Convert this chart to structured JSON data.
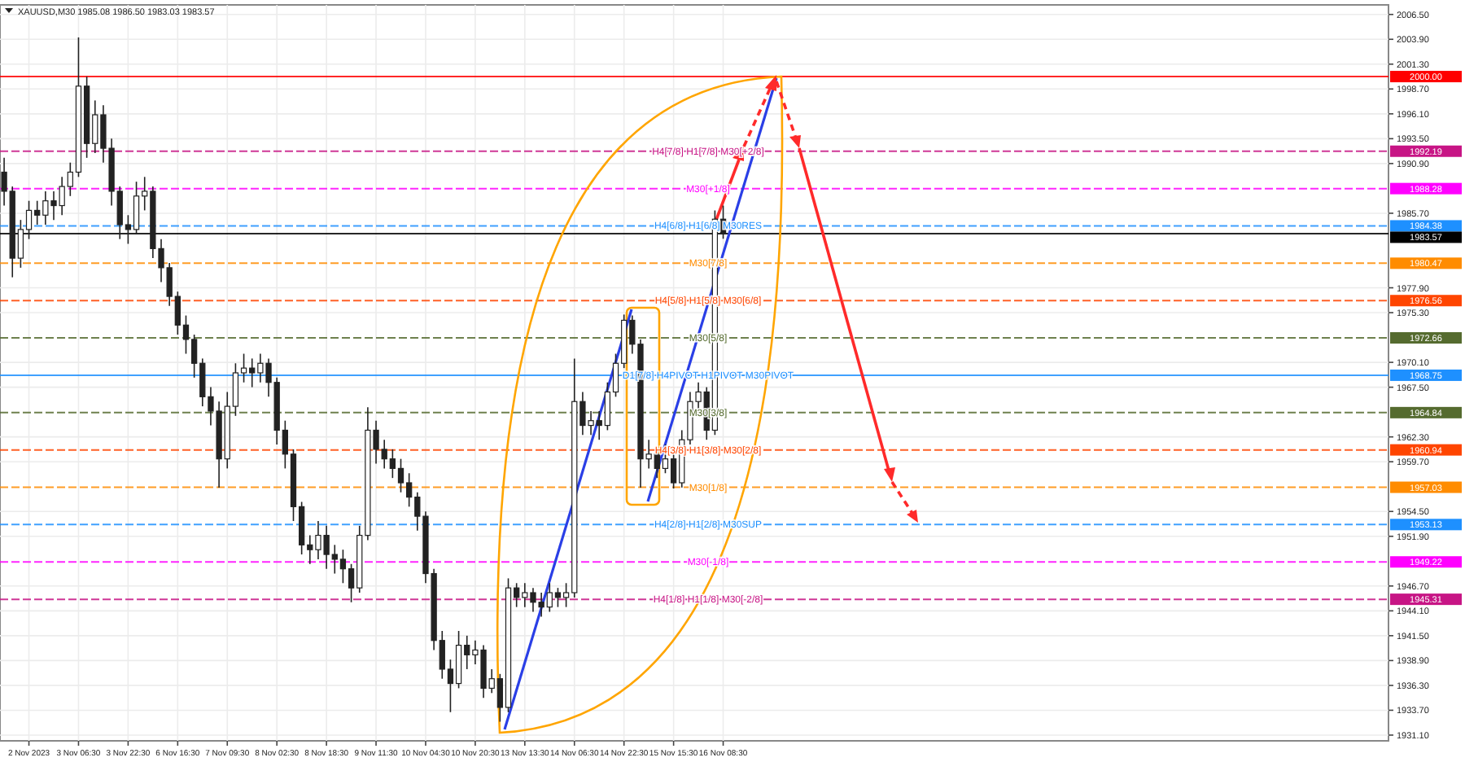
{
  "chart_data": {
    "type": "candlestick",
    "title": "XAUUSD,M30 1985.08 1986.50 1983.03 1983.57",
    "categories": [
      null,
      null,
      null,
      "2 Nov 2023",
      null,
      null,
      null,
      null,
      null,
      "3 Nov 06:30",
      null,
      null,
      null,
      null,
      null,
      "3 Nov 22:30",
      null,
      null,
      null,
      null,
      null,
      "6 Nov 16:30",
      null,
      null,
      null,
      null,
      null,
      "7 Nov 09:30",
      null,
      null,
      null,
      null,
      null,
      "8 Nov 02:30",
      null,
      null,
      null,
      null,
      null,
      "8 Nov 18:30",
      null,
      null,
      null,
      null,
      null,
      "9 Nov 11:30",
      null,
      null,
      null,
      null,
      null,
      "10 Nov 04:30",
      null,
      null,
      null,
      null,
      null,
      "10 Nov 20:30",
      null,
      null,
      null,
      null,
      null,
      "13 Nov 13:30",
      null,
      null,
      null,
      null,
      null,
      "14 Nov 06:30",
      null,
      null,
      null,
      null,
      null,
      "14 Nov 22:30",
      null,
      null,
      null,
      null,
      null,
      "15 Nov 15:30",
      null,
      null,
      null,
      null,
      null,
      "16 Nov 08:30",
      null,
      null,
      null,
      null,
      null,
      null,
      null,
      null,
      null,
      null,
      null,
      null,
      null,
      null,
      null,
      null,
      null,
      null,
      null,
      null,
      null,
      null,
      null,
      null,
      null,
      null,
      null,
      null,
      null,
      null,
      null,
      null,
      null,
      null,
      null,
      null,
      null,
      null,
      null,
      null,
      null,
      null,
      null,
      null,
      null,
      null,
      null,
      null,
      null,
      null,
      null,
      null,
      null,
      null,
      null,
      null,
      null,
      null,
      null,
      null,
      null,
      null,
      null,
      null,
      null,
      null,
      null,
      null,
      null,
      null,
      null,
      null,
      null,
      null,
      null,
      null,
      null,
      null,
      null,
      null
    ],
    "ohlc": [
      [
        1990,
        1991.5,
        1986.5,
        1988
      ],
      [
        1988,
        1988.5,
        1979,
        1981
      ],
      [
        1981,
        1985,
        1980,
        1984
      ],
      [
        1984,
        1987,
        1983,
        1986
      ],
      [
        1986,
        1987,
        1984.5,
        1985.5
      ],
      [
        1985.5,
        1988,
        1984.5,
        1987
      ],
      [
        1987,
        1988,
        1985,
        1986.5
      ],
      [
        1986.5,
        1989.5,
        1985.5,
        1988.5
      ],
      [
        1988.5,
        1991,
        1987.5,
        1990
      ],
      [
        1990,
        2004.1,
        1989.5,
        1999
      ],
      [
        1999,
        2000,
        1991.5,
        1993
      ],
      [
        1993,
        1997.5,
        1992,
        1996
      ],
      [
        1996,
        1997,
        1991,
        1992.5
      ],
      [
        1992.5,
        1993.5,
        1986.5,
        1988
      ],
      [
        1988,
        1988.5,
        1983,
        1984.5
      ],
      [
        1984.5,
        1985.5,
        1982.5,
        1984
      ],
      [
        1984,
        1989,
        1983.5,
        1987.5
      ],
      [
        1987.5,
        1989.5,
        1986,
        1988
      ],
      [
        1988,
        1988.5,
        1981,
        1982
      ],
      [
        1982,
        1983,
        1978.5,
        1980
      ],
      [
        1980,
        1980.5,
        1976,
        1977
      ],
      [
        1977,
        1977.5,
        1973,
        1974
      ],
      [
        1974,
        1975,
        1971,
        1972.5
      ],
      [
        1972.5,
        1973,
        1968.5,
        1970
      ],
      [
        1970,
        1970.5,
        1965.5,
        1966.5
      ],
      [
        1966.5,
        1967.5,
        1963.5,
        1965
      ],
      [
        1965,
        1966,
        1957,
        1960
      ],
      [
        1960,
        1967,
        1959,
        1965.5
      ],
      [
        1965.5,
        1970,
        1964.5,
        1969
      ],
      [
        1969,
        1971,
        1968,
        1969.5
      ],
      [
        1969.5,
        1970.5,
        1967.5,
        1969
      ],
      [
        1969,
        1971,
        1968,
        1970
      ],
      [
        1970,
        1970.5,
        1966.5,
        1968
      ],
      [
        1968,
        1968.5,
        1961.5,
        1963
      ],
      [
        1963,
        1964,
        1959,
        1960.5
      ],
      [
        1960.5,
        1961,
        1953.5,
        1955
      ],
      [
        1955,
        1955.5,
        1950,
        1951
      ],
      [
        1951,
        1952,
        1949,
        1950.5
      ],
      [
        1950.5,
        1953.5,
        1949.5,
        1952
      ],
      [
        1952,
        1953,
        1948.5,
        1950
      ],
      [
        1950,
        1951,
        1948,
        1949.5
      ],
      [
        1949.5,
        1950.5,
        1947,
        1948.5
      ],
      [
        1948.5,
        1949,
        1945,
        1946.5
      ],
      [
        1946.5,
        1953,
        1946,
        1952
      ],
      [
        1952,
        1965.4,
        1951.5,
        1963
      ],
      [
        1963,
        1964,
        1959.5,
        1961
      ],
      [
        1961,
        1962,
        1959,
        1960
      ],
      [
        1960,
        1961,
        1958,
        1959
      ],
      [
        1959,
        1960,
        1956.5,
        1957.5
      ],
      [
        1957.5,
        1958.5,
        1955,
        1956
      ],
      [
        1956,
        1956.5,
        1952.5,
        1954
      ],
      [
        1954,
        1954.5,
        1947,
        1948
      ],
      [
        1948,
        1948.5,
        1940,
        1941
      ],
      [
        1941,
        1942,
        1937,
        1938
      ],
      [
        1938,
        1939,
        1933.5,
        1936.5
      ],
      [
        1936.5,
        1942,
        1936,
        1940.5
      ],
      [
        1940.5,
        1941.5,
        1938,
        1939.5
      ],
      [
        1939.5,
        1941,
        1938.5,
        1940
      ],
      [
        1940,
        1940.5,
        1935,
        1936
      ],
      [
        1936,
        1938,
        1935.5,
        1937
      ],
      [
        1937,
        1937.5,
        1932.5,
        1934
      ],
      [
        1934,
        1947.5,
        1933.5,
        1946.5
      ],
      [
        1946.5,
        1947,
        1944.5,
        1945.5
      ],
      [
        1945.5,
        1947,
        1944.5,
        1946
      ],
      [
        1946,
        1946.5,
        1944,
        1945
      ],
      [
        1945,
        1946,
        1943.5,
        1944.5
      ],
      [
        1944.5,
        1947,
        1944,
        1946
      ],
      [
        1946,
        1946.5,
        1944.5,
        1945.5
      ],
      [
        1945.5,
        1947,
        1944.5,
        1946
      ],
      [
        1946,
        1970.5,
        1945.5,
        1966
      ],
      [
        1966,
        1967,
        1962.5,
        1963.5
      ],
      [
        1963.5,
        1965,
        1962.5,
        1964
      ],
      [
        1964,
        1965,
        1962,
        1963.5
      ],
      [
        1963.5,
        1968,
        1963,
        1967
      ],
      [
        1967,
        1971,
        1966.5,
        1970
      ],
      [
        1970,
        1975.1,
        1969.5,
        1974.5
      ],
      [
        1974.5,
        1975,
        1971,
        1972
      ],
      [
        1972,
        1972.5,
        1957,
        1960
      ],
      [
        1960,
        1962,
        1959,
        1960.5
      ],
      [
        1960.5,
        1961,
        1958,
        1959
      ],
      [
        1959,
        1961.5,
        1958.5,
        1960
      ],
      [
        1960,
        1960.5,
        1956.9,
        1957.5
      ],
      [
        1957.5,
        1963,
        1957,
        1962
      ],
      [
        1962,
        1967,
        1961.5,
        1966
      ],
      [
        1966,
        1968,
        1965,
        1967
      ],
      [
        1967,
        1967.5,
        1962,
        1963
      ],
      [
        1963,
        1986,
        1962.5,
        1985.08
      ],
      [
        1985.08,
        1986.5,
        1983.03,
        1983.57
      ],
      null,
      null,
      null,
      null,
      null,
      null,
      null,
      null,
      null,
      null,
      null,
      null,
      null,
      null,
      null,
      null,
      null,
      null,
      null,
      null,
      null,
      null,
      null,
      null,
      null,
      null,
      null,
      null,
      null,
      null,
      null,
      null,
      null,
      null,
      null,
      null,
      null,
      null,
      null,
      null,
      null,
      null,
      null,
      null,
      null,
      null,
      null,
      null,
      null,
      null,
      null,
      null,
      null,
      null,
      null,
      null,
      null,
      null,
      null,
      null,
      null,
      null,
      null,
      null,
      null,
      null,
      null,
      null,
      null,
      null,
      null,
      null,
      null,
      null,
      null,
      null,
      null,
      null,
      null,
      null
    ],
    "ylim": [
      1930.5,
      2007.5
    ],
    "yticks": [
      {
        "value": 1931.1,
        "label": "1931.10"
      },
      {
        "value": 1933.7,
        "label": "1933.70"
      },
      {
        "value": 1936.3,
        "label": "1936.30"
      },
      {
        "value": 1938.9,
        "label": "1938.90"
      },
      {
        "value": 1941.5,
        "label": "1941.50"
      },
      {
        "value": 1944.1,
        "label": "1944.10"
      },
      {
        "value": 1946.7,
        "label": "1946.70"
      },
      {
        "value": 1951.9,
        "label": "1951.90"
      },
      {
        "value": 1954.5,
        "label": "1954.50"
      },
      {
        "value": 1959.7,
        "label": "1959.70"
      },
      {
        "value": 1962.3,
        "label": "1962.30"
      },
      {
        "value": 1967.5,
        "label": "1967.50"
      },
      {
        "value": 1970.1,
        "label": "1970.10"
      },
      {
        "value": 1975.3,
        "label": "1975.30"
      },
      {
        "value": 1977.9,
        "label": "1977.90"
      },
      {
        "value": 1985.7,
        "label": "1985.70"
      },
      {
        "value": 1990.9,
        "label": "1990.90"
      },
      {
        "value": 1993.5,
        "label": "1993.50"
      },
      {
        "value": 1996.1,
        "label": "1996.10"
      },
      {
        "value": 1998.7,
        "label": "1998.70"
      },
      {
        "value": 2001.3,
        "label": "2001.30"
      },
      {
        "value": 2003.9,
        "label": "2003.90"
      },
      {
        "value": 2006.5,
        "label": "2006.50"
      }
    ],
    "annotations": [
      {
        "text": "H4[7/8] H1[7/8] M30[+2/8]",
        "y": 1992.19
      },
      {
        "text": "M30[+1/8]",
        "y": 1988.28
      },
      {
        "text": "H4[6/8] H1[6/8] M30RES",
        "y": 1984.38
      },
      {
        "text": "M30[7/8]",
        "y": 1980.47
      },
      {
        "text": "H4[5/8] H1[5/8] M30[6/8]",
        "y": 1976.56
      },
      {
        "text": "M30[5/8]",
        "y": 1972.66
      },
      {
        "text": "D1[7/8] H4PIVOT H1PIVOT M30PIVOT",
        "y": 1968.75
      },
      {
        "text": "M30[3/8]",
        "y": 1964.84
      },
      {
        "text": "H4[3/8] H1[3/8] M30[2/8]",
        "y": 1960.94
      },
      {
        "text": "M30[1/8]",
        "y": 1957.03
      },
      {
        "text": "H4[2/8] H1[2/8] M30SUP",
        "y": 1953.13
      },
      {
        "text": "M30[-1/8]",
        "y": 1949.22
      },
      {
        "text": "H4[1/8] H1[1/8] M30[-2/8]",
        "y": 1945.31
      }
    ],
    "grid": true,
    "ref_lines": [
      {
        "axis": "y",
        "value": 2000.0,
        "label": "2000.00",
        "color": "#ff0000",
        "line_style": "solid"
      },
      {
        "axis": "y",
        "value": 1992.19,
        "label": "1992.19",
        "color": "#c71585",
        "line_style": "dashed"
      },
      {
        "axis": "y",
        "value": 1988.28,
        "label": "1988.28",
        "color": "#ff00ff",
        "line_style": "dashed"
      },
      {
        "axis": "y",
        "value": 1984.38,
        "label": "1984.38",
        "color": "#1e90ff",
        "line_style": "dashed"
      },
      {
        "axis": "y",
        "value": 1983.57,
        "label": "1983.57",
        "color": "#000000",
        "line_style": "solid"
      },
      {
        "axis": "y",
        "value": 1980.47,
        "label": "1980.47",
        "color": "#ff8c00",
        "line_style": "dashed"
      },
      {
        "axis": "y",
        "value": 1976.56,
        "label": "1976.56",
        "color": "#ff4500",
        "line_style": "dashed"
      },
      {
        "axis": "y",
        "value": 1972.66,
        "label": "1972.66",
        "color": "#556b2f",
        "line_style": "dashed"
      },
      {
        "axis": "y",
        "value": 1968.75,
        "label": "1968.75",
        "color": "#1e90ff",
        "line_style": "solid"
      },
      {
        "axis": "y",
        "value": 1964.84,
        "label": "1964.84",
        "color": "#556b2f",
        "line_style": "dashed"
      },
      {
        "axis": "y",
        "value": 1960.94,
        "label": "1960.94",
        "color": "#ff4500",
        "line_style": "dashed"
      },
      {
        "axis": "y",
        "value": 1957.03,
        "label": "1957.03",
        "color": "#ff8c00",
        "line_style": "dashed"
      },
      {
        "axis": "y",
        "value": 1953.13,
        "label": "1953.13",
        "color": "#1e90ff",
        "line_style": "dashed"
      },
      {
        "axis": "y",
        "value": 1949.22,
        "label": "1949.22",
        "color": "#ff00ff",
        "line_style": "dashed"
      },
      {
        "axis": "y",
        "value": 1945.31,
        "label": "1945.31",
        "color": "#c71585",
        "line_style": "dashed"
      }
    ]
  }
}
